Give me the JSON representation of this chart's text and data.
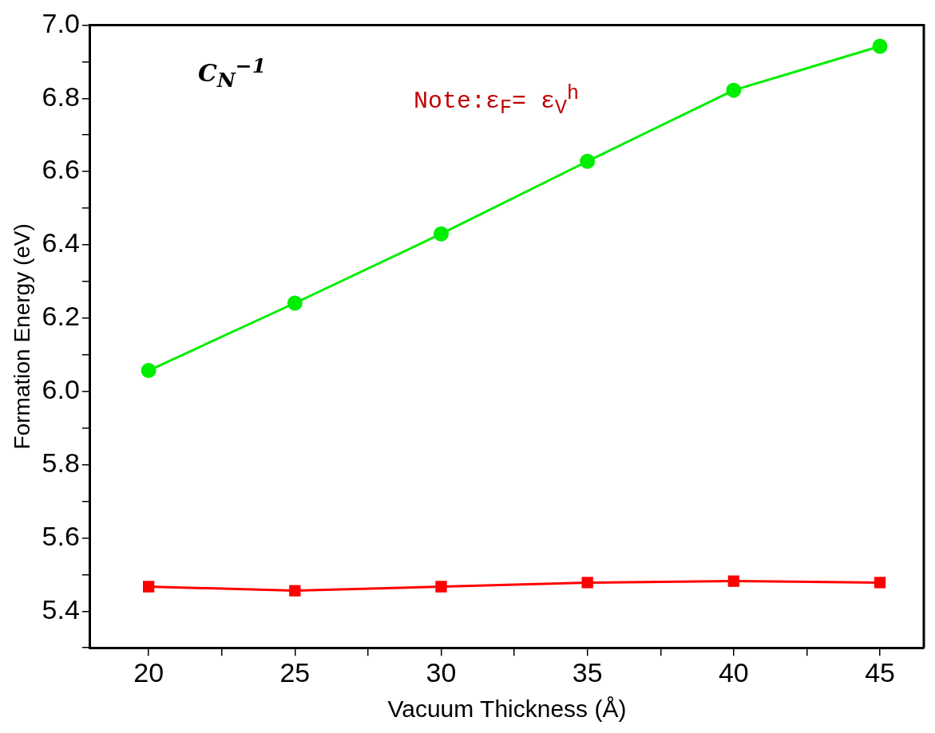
{
  "chart_data": {
    "type": "line",
    "xlabel": "Vacuum Thickness (Å)",
    "ylabel": "Formation Energy (eV)",
    "x": [
      20,
      25,
      30,
      35,
      40,
      45
    ],
    "series": [
      {
        "color": "#00ee00",
        "marker": "circle",
        "values": [
          6.057,
          6.241,
          6.43,
          6.628,
          6.822,
          6.942
        ]
      },
      {
        "color": "#ff0000",
        "marker": "square",
        "values": [
          5.467,
          5.456,
          5.467,
          5.478,
          5.482,
          5.478
        ]
      }
    ],
    "xlim": [
      18,
      46.5
    ],
    "xticks": [
      20,
      25,
      30,
      35,
      40,
      45
    ],
    "ylim": [
      5.3,
      7.0
    ],
    "yticks": [
      5.4,
      5.6,
      5.8,
      {
        "value": 6,
        "label": "6.0"
      },
      6.2,
      6.4,
      6.6,
      6.8,
      {
        "value": 7,
        "label": "7.0"
      }
    ],
    "grid": false,
    "legend": false,
    "annotations": [
      "C$_{N}$$^{−1}$",
      "Note:ε$_{F}$= ε$_{V}$$^{h}$"
    ]
  }
}
